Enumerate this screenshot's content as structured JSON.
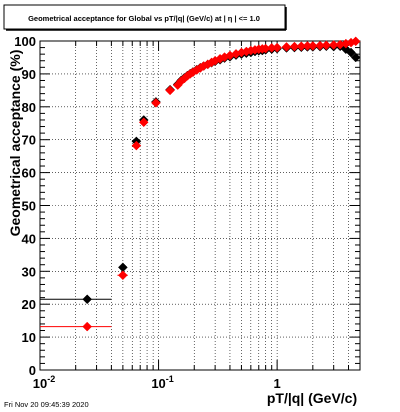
{
  "chart_data": {
    "type": "scatter",
    "title": "Geometrical acceptance for Global vs pT/|q| (GeV/c) at | η | <= 1.0",
    "xlabel": "pT/|q| (GeV/c)",
    "ylabel": "Geometrical acceptance (%)",
    "x_scale": "log",
    "xlim": [
      0.01,
      5
    ],
    "ylim": [
      0,
      100
    ],
    "grid": true,
    "x_ticks": [
      {
        "value": 0.01,
        "base": "10",
        "exp": "-2"
      },
      {
        "value": 0.1,
        "base": "10",
        "exp": "-1"
      },
      {
        "value": 1,
        "base": "1",
        "exp": ""
      }
    ],
    "y_ticks": [
      0,
      10,
      20,
      30,
      40,
      50,
      60,
      70,
      80,
      90,
      100
    ],
    "series": [
      {
        "color": "#000000",
        "marker": "diamond",
        "x": [
          0.025,
          0.05,
          0.065,
          0.075,
          0.095,
          0.125,
          0.145,
          0.155,
          0.165,
          0.175,
          0.185,
          0.195,
          0.21,
          0.225,
          0.24,
          0.26,
          0.28,
          0.3,
          0.33,
          0.36,
          0.4,
          0.45,
          0.5,
          0.55,
          0.6,
          0.65,
          0.7,
          0.75,
          0.8,
          0.9,
          1.0,
          1.2,
          1.4,
          1.6,
          1.8,
          2.0,
          2.3,
          2.6,
          3.0,
          3.4,
          3.8,
          4.2,
          4.6
        ],
        "y": [
          21.5,
          31.2,
          69.5,
          76,
          81.5,
          85.2,
          86.8,
          88,
          88.8,
          89.5,
          90.1,
          90.6,
          91.3,
          91.9,
          92.4,
          92.9,
          93.4,
          93.8,
          94.3,
          94.8,
          95.2,
          95.7,
          96,
          96.3,
          96.5,
          96.8,
          97,
          97.1,
          97.3,
          97.5,
          97.7,
          97.9,
          98,
          98.1,
          98.2,
          98.2,
          98.3,
          98.4,
          98.3,
          98.4,
          97.5,
          96.5,
          95
        ],
        "x_err": [
          0.015,
          0,
          0,
          0,
          0,
          0,
          0,
          0,
          0,
          0,
          0,
          0,
          0,
          0,
          0,
          0,
          0,
          0,
          0,
          0,
          0,
          0,
          0,
          0,
          0,
          0,
          0,
          0,
          0,
          0,
          0,
          0,
          0,
          0,
          0,
          0,
          0,
          0,
          0,
          0,
          0,
          0,
          0
        ]
      },
      {
        "color": "#ff0000",
        "marker": "diamond",
        "x": [
          0.025,
          0.05,
          0.065,
          0.075,
          0.095,
          0.125,
          0.145,
          0.155,
          0.165,
          0.175,
          0.185,
          0.195,
          0.21,
          0.225,
          0.24,
          0.26,
          0.28,
          0.3,
          0.33,
          0.36,
          0.4,
          0.45,
          0.5,
          0.55,
          0.6,
          0.65,
          0.7,
          0.75,
          0.8,
          0.9,
          1.0,
          1.2,
          1.4,
          1.6,
          1.8,
          2.0,
          2.3,
          2.6,
          3.0,
          3.4,
          3.8,
          4.2,
          4.6
        ],
        "y": [
          13.2,
          28.8,
          68.2,
          75.3,
          81.2,
          85,
          86.6,
          87.8,
          88.6,
          89.4,
          90,
          90.5,
          91.2,
          91.8,
          92.4,
          92.9,
          93.5,
          94,
          94.6,
          95.1,
          95.6,
          96.1,
          96.5,
          96.8,
          97.1,
          97.3,
          97.5,
          97.6,
          97.7,
          97.9,
          98,
          98.2,
          98.3,
          98.4,
          98.5,
          98.5,
          98.6,
          98.7,
          98.8,
          98.9,
          99.2,
          99.5,
          99.9
        ],
        "x_err": [
          0.015,
          0.005,
          0,
          0,
          0,
          0,
          0,
          0,
          0,
          0,
          0,
          0,
          0,
          0,
          0,
          0,
          0,
          0,
          0,
          0,
          0,
          0,
          0,
          0,
          0,
          0,
          0,
          0,
          0,
          0,
          0,
          0,
          0,
          0,
          0,
          0,
          0,
          0,
          0,
          0,
          0,
          0,
          0
        ]
      }
    ]
  },
  "timestamp": "Fri Nov 20 09:45:39 2020"
}
